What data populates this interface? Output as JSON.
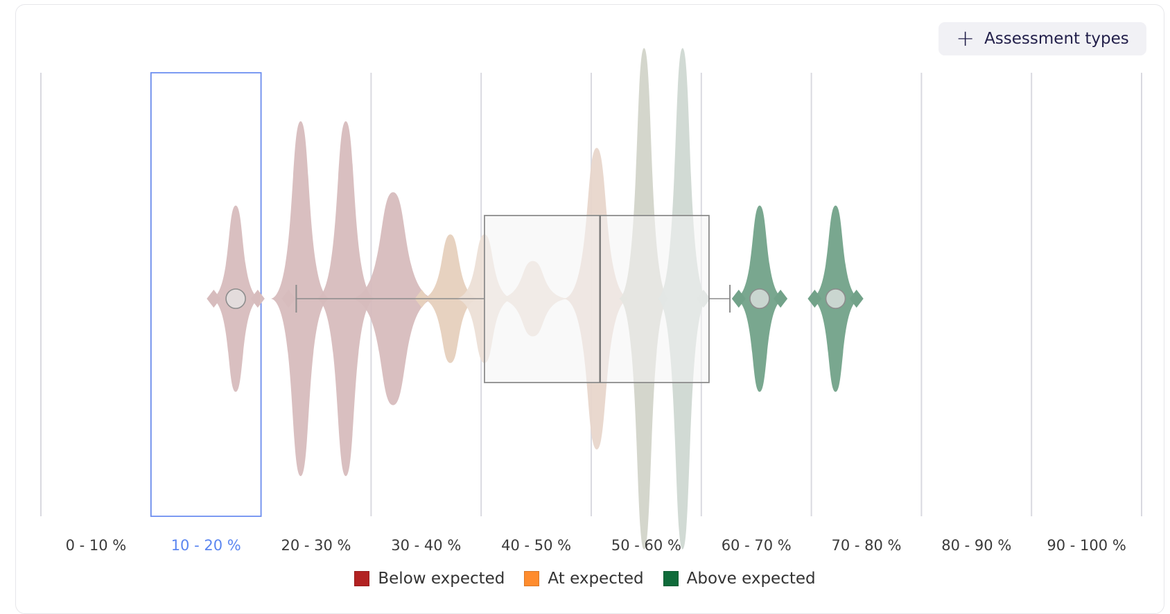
{
  "toolbar": {
    "assessment_types_label": "Assessment types",
    "plus_icon": "plus-icon"
  },
  "colors": {
    "grid": "#d9d9e0",
    "selection": "#6e8ff0",
    "tick_selected": "#5b86f0",
    "tick": "#3a3a3a",
    "box_stroke": "#8c8c8c"
  },
  "chart_data": {
    "type": "violin",
    "orientation": "horizontal",
    "xlabel": "",
    "ylabel": "",
    "xlim": [
      0,
      100
    ],
    "grid": true,
    "categories": [
      "0 - 10 %",
      "10 - 20 %",
      "20 - 30 %",
      "30 - 40 %",
      "40 - 50 %",
      "50 - 60 %",
      "60 - 70 %",
      "70 - 80 %",
      "80 - 90 %",
      "90 - 100 %"
    ],
    "selected_category": "10 - 20 %",
    "legend": [
      {
        "label": "Below expected",
        "color": "#b22222"
      },
      {
        "label": "At expected",
        "color": "#ff8c2e"
      },
      {
        "label": "Above expected",
        "color": "#0f6b3a"
      }
    ],
    "violins": [
      {
        "group": "Below expected",
        "center": 17.7,
        "half_width": 2.3,
        "height": 0.21,
        "color": "#d7bcbd"
      },
      {
        "group": "Below expected",
        "center": 23.6,
        "half_width": 2.7,
        "height": 0.4,
        "color": "#d7bcbd"
      },
      {
        "group": "Below expected",
        "center": 27.7,
        "half_width": 2.7,
        "height": 0.4,
        "color": "#d7bcbd"
      },
      {
        "group": "Below expected",
        "center": 32.0,
        "half_width": 3.9,
        "height": 0.24,
        "color": "#d7bcbd"
      },
      {
        "group": "At expected",
        "center": 37.2,
        "half_width": 2.7,
        "height": 0.145,
        "color": "#e6d0bd"
      },
      {
        "group": "At expected",
        "center": 40.3,
        "half_width": 2.7,
        "height": 0.145,
        "color": "#ecdfd6"
      },
      {
        "group": "At expected",
        "center": 44.7,
        "half_width": 3.4,
        "height": 0.085,
        "color": "#ecdfd6"
      },
      {
        "group": "At expected",
        "center": 50.5,
        "half_width": 3.0,
        "height": 0.34,
        "color": "#e8d6cb"
      },
      {
        "group": "Above expected",
        "center": 54.8,
        "half_width": 2.3,
        "height": 0.565,
        "color": "#d2d4c9"
      },
      {
        "group": "Above expected",
        "center": 58.3,
        "half_width": 2.3,
        "height": 0.565,
        "color": "#cfd8d2"
      },
      {
        "group": "Above expected",
        "center": 65.3,
        "half_width": 2.3,
        "height": 0.21,
        "color": "#72a289"
      },
      {
        "group": "Above expected",
        "center": 72.2,
        "half_width": 2.3,
        "height": 0.21,
        "color": "#72a289"
      }
    ],
    "small_diamonds": [
      {
        "center": 15.7,
        "color": "#d7bcbd"
      },
      {
        "center": 19.7,
        "color": "#d7bcbd"
      },
      {
        "center": 22.5,
        "color": "#d7bcbd"
      },
      {
        "center": 34.6,
        "color": "#e6d0bd"
      },
      {
        "center": 60.2,
        "color": "#cfd8d2"
      },
      {
        "center": 63.4,
        "color": "#72a289"
      },
      {
        "center": 67.2,
        "color": "#72a289"
      },
      {
        "center": 70.3,
        "color": "#72a289"
      },
      {
        "center": 74.1,
        "color": "#72a289"
      }
    ],
    "boxplot": {
      "whisker_low": 23.2,
      "q1": 40.3,
      "median": 50.8,
      "q3": 60.7,
      "whisker_high": 62.6
    },
    "outliers": [
      17.7,
      65.3,
      72.2
    ]
  }
}
